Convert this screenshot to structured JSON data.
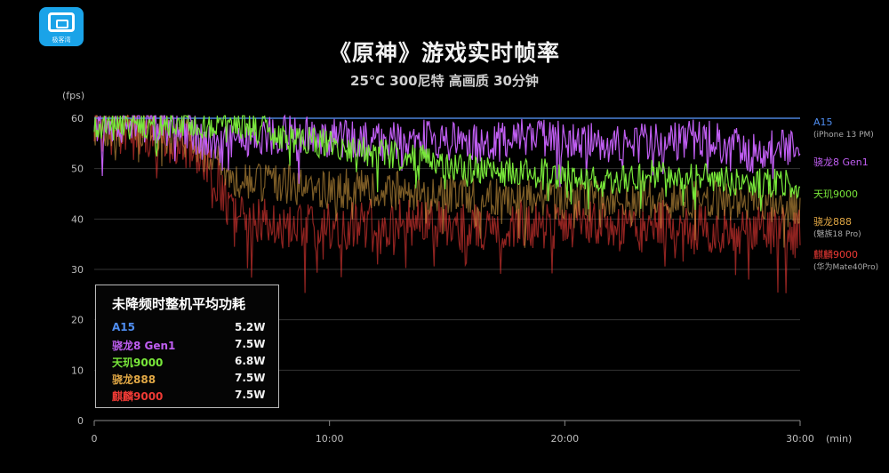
{
  "header": {
    "logo_label": "极客湾",
    "title": "《原神》游戏实时帧率",
    "subtitle": "25℃ 300尼特 高画质 30分钟"
  },
  "power_table": {
    "title": "未降频时整机平均功耗",
    "rows": [
      {
        "name": "A15",
        "value": "5.2W",
        "color": "#4f8df0"
      },
      {
        "name": "骁龙8 Gen1",
        "value": "7.5W",
        "color": "#c05ef2"
      },
      {
        "name": "天玑9000",
        "value": "6.8W",
        "color": "#79e83a"
      },
      {
        "name": "骁龙888",
        "value": "7.5W",
        "color": "#e2a845"
      },
      {
        "name": "麒麟9000",
        "value": "7.5W",
        "color": "#ef3a35"
      }
    ]
  },
  "chart_data": {
    "type": "line",
    "title": "《原神》游戏实时帧率",
    "subtitle": "25℃ 300尼特 高画质 30分钟",
    "ylabel": "(fps)",
    "xlabel": "(min)",
    "ylim": [
      0,
      62
    ],
    "xlim": [
      0,
      30
    ],
    "yticks": [
      0,
      10,
      20,
      30,
      40,
      50,
      60
    ],
    "xticks": [
      {
        "value": 0,
        "label": "0"
      },
      {
        "value": 10,
        "label": "10:00"
      },
      {
        "value": 20,
        "label": "20:00"
      },
      {
        "value": 30,
        "label": "30:00"
      }
    ],
    "grid": true,
    "legend_position": "right",
    "series": [
      {
        "name": "A15",
        "sub": "(iPhone 13 PM)",
        "color": "#4f8df0",
        "x": [
          0,
          5,
          10,
          15,
          20,
          25,
          30
        ],
        "values": [
          60,
          60,
          60,
          60,
          60,
          60,
          60
        ]
      },
      {
        "name": "骁龙8 Gen1",
        "sub": "",
        "color": "#c05ef2",
        "x": [
          0,
          2,
          4,
          5,
          6,
          8,
          10,
          12,
          14,
          16,
          18,
          20,
          22,
          24,
          26,
          28,
          29,
          30
        ],
        "values": [
          59,
          59,
          58,
          54,
          56,
          57,
          56,
          55,
          56,
          55,
          56,
          56,
          55,
          55,
          56,
          53,
          55,
          54
        ]
      },
      {
        "name": "天玑9000",
        "sub": "",
        "color": "#79e83a",
        "x": [
          0,
          2,
          4,
          6,
          7,
          8,
          10,
          11,
          12,
          14,
          16,
          18,
          20,
          22,
          24,
          26,
          28,
          30
        ],
        "values": [
          58,
          59,
          59,
          59,
          58,
          56,
          55,
          54,
          53,
          52,
          50,
          49,
          49,
          48,
          49,
          48,
          47,
          47
        ]
      },
      {
        "name": "骁龙888",
        "sub": "(魅族18 Pro)",
        "color": "#e2a845",
        "x": [
          0,
          2,
          4,
          5,
          6,
          8,
          10,
          12,
          14,
          16,
          18,
          20,
          22,
          24,
          26,
          28,
          30
        ],
        "values": [
          58,
          58,
          56,
          52,
          48,
          47,
          46,
          46,
          45,
          45,
          44,
          44,
          44,
          44,
          44,
          43,
          42
        ]
      },
      {
        "name": "麒麟9000",
        "sub": "(华为Mate40Pro)",
        "color": "#ef3a35",
        "x": [
          0,
          2,
          4,
          5,
          6,
          8,
          10,
          12,
          14,
          16,
          18,
          20,
          22,
          24,
          26,
          28,
          30
        ],
        "values": [
          58,
          57,
          55,
          50,
          40,
          39,
          39,
          39,
          39,
          38,
          39,
          39,
          38,
          39,
          38,
          38,
          37
        ]
      }
    ]
  }
}
